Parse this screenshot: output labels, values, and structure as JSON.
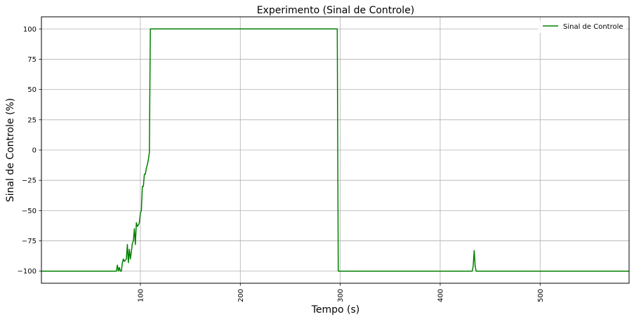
{
  "chart_data": {
    "type": "line",
    "title": "Experimento (Sinal de Controle)",
    "xlabel": "Tempo (s)",
    "ylabel": "Sinal de Controle (%)",
    "xlim": [
      1,
      589
    ],
    "ylim": [
      -110,
      110
    ],
    "xticks": [
      100,
      200,
      300,
      400,
      500
    ],
    "xtick_labels": [
      "100",
      "200",
      "300",
      "400",
      "500"
    ],
    "yticks": [
      100,
      75,
      50,
      25,
      0,
      -25,
      -50,
      -75,
      -100
    ],
    "ytick_labels": [
      "100",
      "75",
      "50",
      "25",
      "0",
      "−25",
      "−50",
      "−75",
      "−100"
    ],
    "grid": true,
    "legend_position": "upper-right",
    "series": [
      {
        "name": "Sinal de Controle",
        "color": "#008000",
        "x": [
          1,
          76,
          77,
          78,
          79,
          80,
          81,
          82,
          83,
          84,
          85,
          86,
          87,
          88,
          89,
          90,
          91,
          92,
          93,
          94,
          95,
          96,
          97,
          98,
          99,
          100,
          101,
          102,
          103,
          104,
          105,
          106,
          107,
          108,
          109,
          110,
          111,
          112,
          113,
          114,
          115,
          297,
          298,
          299,
          300,
          432,
          433,
          434,
          435,
          436,
          589
        ],
        "y": [
          -100,
          -100,
          -95,
          -100,
          -97,
          -100,
          -100,
          -93,
          -90,
          -92,
          -91,
          -90,
          -78,
          -93,
          -82,
          -90,
          -84,
          -77,
          -75,
          -65,
          -78,
          -60,
          -63,
          -62,
          -60,
          -52,
          -50,
          -30,
          -30,
          -20,
          -20,
          -15,
          -12,
          -8,
          -2,
          100,
          100,
          100,
          100,
          100,
          100,
          100,
          -100,
          -100,
          -100,
          -100,
          -96,
          -83,
          -96,
          -100,
          -100
        ]
      }
    ]
  }
}
